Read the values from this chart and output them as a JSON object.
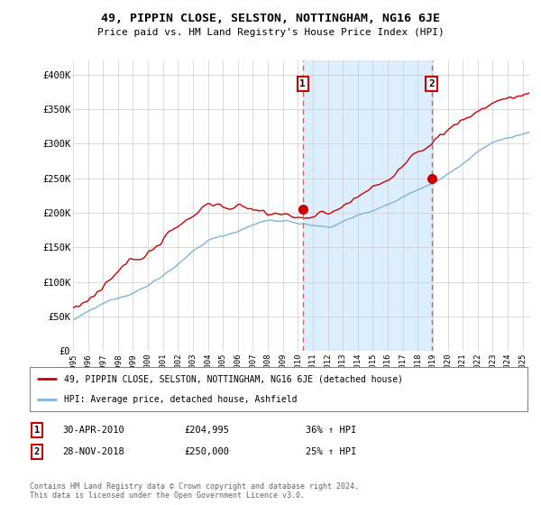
{
  "title": "49, PIPPIN CLOSE, SELSTON, NOTTINGHAM, NG16 6JE",
  "subtitle": "Price paid vs. HM Land Registry's House Price Index (HPI)",
  "ylabel_ticks": [
    "£0",
    "£50K",
    "£100K",
    "£150K",
    "£200K",
    "£250K",
    "£300K",
    "£350K",
    "£400K"
  ],
  "ytick_values": [
    0,
    50000,
    100000,
    150000,
    200000,
    250000,
    300000,
    350000,
    400000
  ],
  "ylim": [
    0,
    420000
  ],
  "xlim_start": 1995,
  "xlim_end": 2025.5,
  "legend_line1": "49, PIPPIN CLOSE, SELSTON, NOTTINGHAM, NG16 6JE (detached house)",
  "legend_line2": "HPI: Average price, detached house, Ashfield",
  "transaction1_label": "1",
  "transaction1_date": "30-APR-2010",
  "transaction1_price": "£204,995",
  "transaction1_hpi": "36% ↑ HPI",
  "transaction2_label": "2",
  "transaction2_date": "28-NOV-2018",
  "transaction2_price": "£250,000",
  "transaction2_hpi": "25% ↑ HPI",
  "footer": "Contains HM Land Registry data © Crown copyright and database right 2024.\nThis data is licensed under the Open Government Licence v3.0.",
  "line_color_red": "#cc0000",
  "line_color_blue": "#7fb4d8",
  "shade_color": "#ddeeff",
  "dashed_line_color": "#cc6666",
  "bg_color": "#ffffff",
  "grid_color": "#cccccc",
  "transaction1_x": 2010.33,
  "transaction2_x": 2018.92,
  "transaction1_y": 204995,
  "transaction2_y": 250000
}
